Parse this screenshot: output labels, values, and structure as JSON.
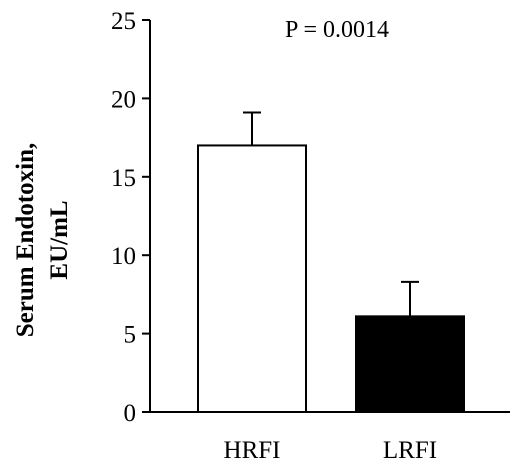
{
  "chart_data": {
    "type": "bar",
    "categories": [
      "HRFI",
      "LRFI"
    ],
    "values": [
      17.0,
      6.1
    ],
    "error_upper": [
      2.1,
      2.2
    ],
    "bar_fill": [
      "#ffffff",
      "#000000"
    ],
    "bar_stroke": "#000000",
    "ylabel_lines": [
      "Serum Endotoxin,",
      "EU/mL"
    ],
    "ylim": [
      0,
      25
    ],
    "yticks": [
      0,
      5,
      10,
      15,
      20,
      25
    ],
    "annotation": "P = 0.0014",
    "grid": false,
    "legend": "none"
  }
}
